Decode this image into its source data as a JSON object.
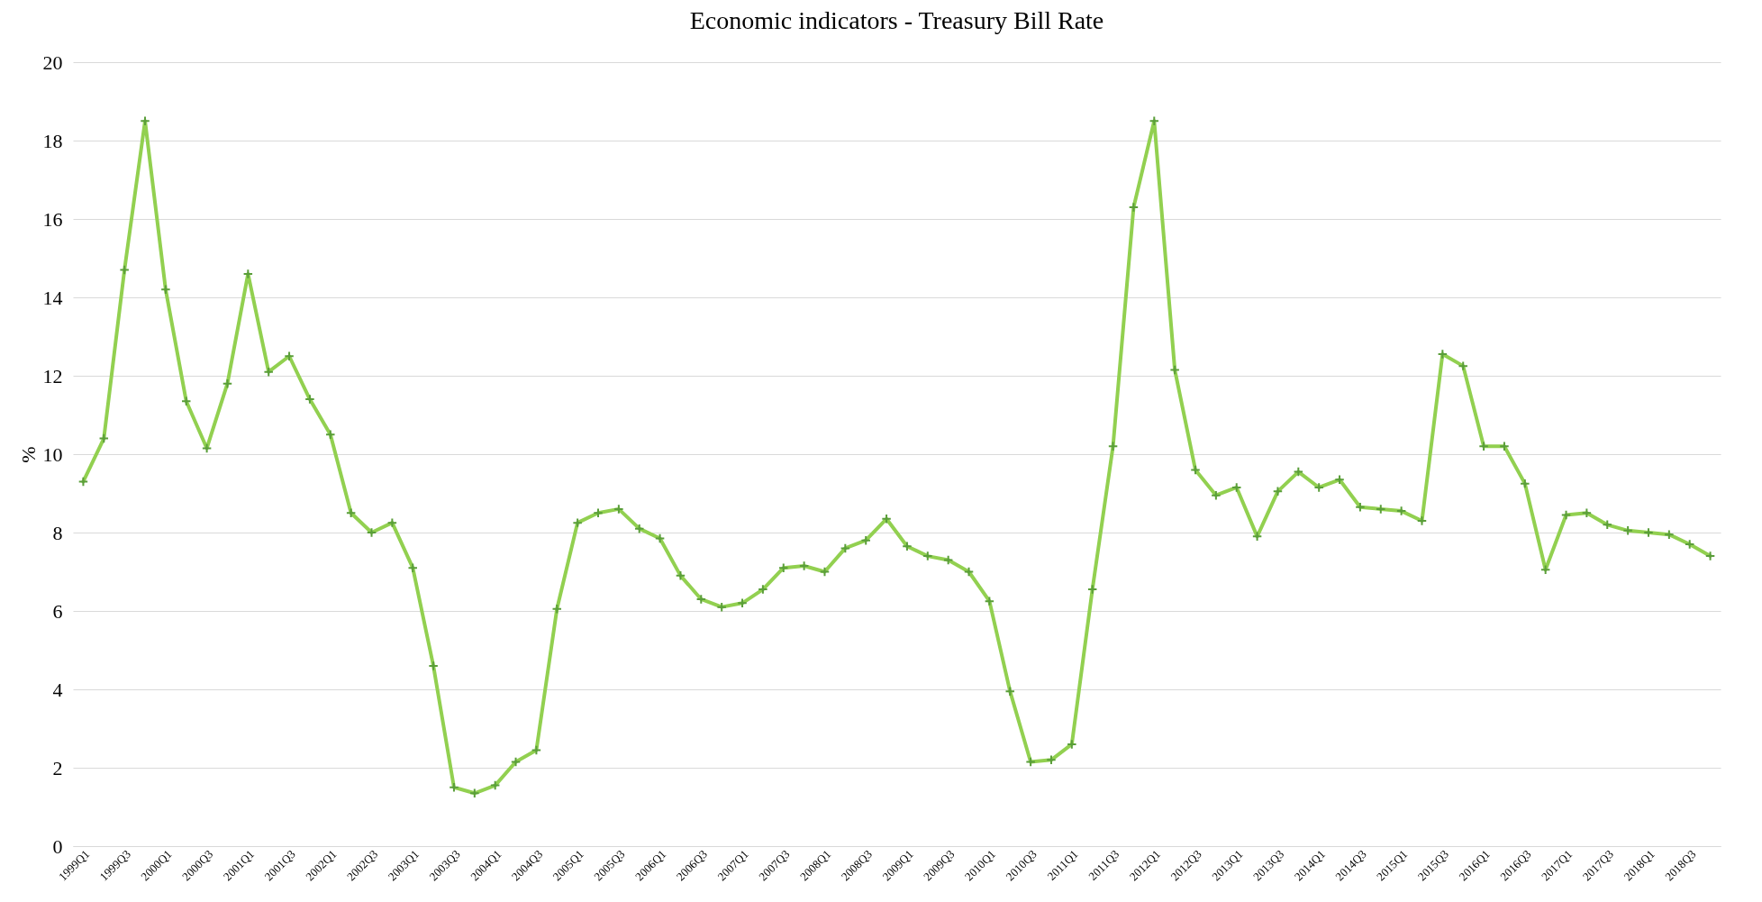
{
  "chart_data": {
    "type": "line",
    "title": "Economic indicators - Treasury Bill Rate",
    "ylabel": "%",
    "categories": [
      "1999Q1",
      null,
      "1999Q3",
      null,
      "2000Q1",
      null,
      "2000Q3",
      null,
      "2001Q1",
      null,
      "2001Q3",
      null,
      "2002Q1",
      null,
      "2002Q3",
      null,
      "2003Q1",
      null,
      "2003Q3",
      null,
      "2004Q1",
      null,
      "2004Q3",
      null,
      "2005Q1",
      null,
      "2005Q3",
      null,
      "2006Q1",
      null,
      "2006Q3",
      null,
      "2007Q1",
      null,
      "2007Q3",
      null,
      "2008Q1",
      null,
      "2008Q3",
      null,
      "2009Q1",
      null,
      "2009Q3",
      null,
      "2010Q1",
      null,
      "2010Q3",
      null,
      "2011Q1",
      null,
      "2011Q3",
      null,
      "2012Q1",
      null,
      "2012Q3",
      null,
      "2013Q1",
      null,
      "2013Q3",
      null,
      "2014Q1",
      null,
      "2014Q3",
      null,
      "2015Q1",
      null,
      "2015Q3",
      null,
      "2016Q1",
      null,
      "2016Q3",
      null,
      "2017Q1",
      null,
      "2017Q3",
      null,
      "2018Q1",
      null,
      "2018Q3",
      null
    ],
    "series": [
      {
        "color": "#92d050",
        "values": [
          9.3,
          10.4,
          14.7,
          18.5,
          14.2,
          11.35,
          10.15,
          11.8,
          14.6,
          12.1,
          12.5,
          11.4,
          10.5,
          8.5,
          8.0,
          8.25,
          7.1,
          4.6,
          1.5,
          1.35,
          1.55,
          2.15,
          2.45,
          6.05,
          8.25,
          8.5,
          8.6,
          8.1,
          7.85,
          6.9,
          6.3,
          6.1,
          6.2,
          6.55,
          7.1,
          7.15,
          7.0,
          7.6,
          7.8,
          8.35,
          7.65,
          7.4,
          7.3,
          7.0,
          6.25,
          3.95,
          2.15,
          2.2,
          2.6,
          6.55,
          10.2,
          16.3,
          18.5,
          12.15,
          9.6,
          8.95,
          9.15,
          7.9,
          9.05,
          9.55,
          9.15,
          9.35,
          8.65,
          8.6,
          8.55,
          8.3,
          12.55,
          12.25,
          10.2,
          10.2,
          9.25,
          7.05,
          8.45,
          8.5,
          8.2,
          8.05,
          8.0,
          7.95,
          7.7,
          7.4
        ]
      }
    ],
    "ylim": [
      0,
      20
    ],
    "yticks": [
      0,
      2,
      4,
      6,
      8,
      10,
      12,
      14,
      16,
      18,
      20
    ],
    "grid": "y",
    "marker": "cross",
    "line_style": "solid"
  }
}
